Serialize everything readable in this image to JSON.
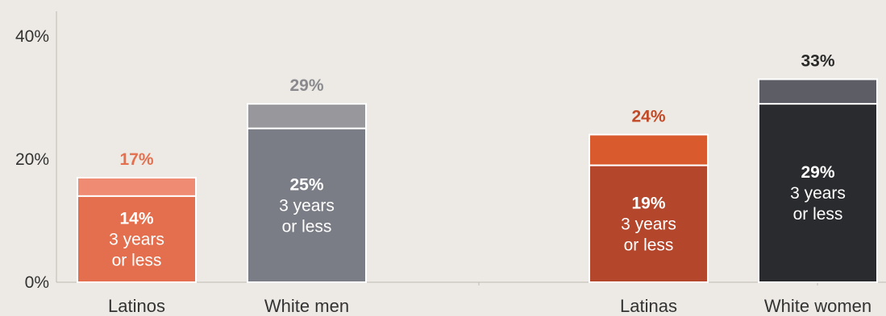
{
  "chart_data": {
    "type": "bar",
    "stacked": true,
    "categories": [
      "Latinos",
      "White men",
      "Latinas",
      "White women"
    ],
    "ylim": [
      0,
      40
    ],
    "yticks": [
      "0%",
      "20%",
      "40%"
    ],
    "series": [
      {
        "values": [
          14,
          25,
          19,
          29
        ]
      },
      {
        "values": [
          3,
          4,
          5,
          4
        ]
      }
    ],
    "totals": [
      17,
      29,
      24,
      33
    ],
    "total_labels": [
      "17%",
      "29%",
      "24%",
      "33%"
    ],
    "inner_labels": [
      {
        "value": "14%",
        "line1": "3 years",
        "line2": "or less"
      },
      {
        "value": "25%",
        "line1": "3 years",
        "line2": "or less"
      },
      {
        "value": "19%",
        "line1": "3 years",
        "line2": "or less"
      },
      {
        "value": "29%",
        "line1": "3 years",
        "line2": "or less"
      }
    ],
    "colors": {
      "bottom": [
        "#e46f4e",
        "#7b7d86",
        "#b4462b",
        "#2a2b2e"
      ],
      "top": [
        "#ef8a73",
        "#98989c",
        "#d95a2d",
        "#5d5d66"
      ],
      "total_label": [
        "#e3704e",
        "#8a8a8e",
        "#c24a27",
        "#2a2a2a"
      ]
    },
    "grid": false,
    "legend": "none"
  }
}
